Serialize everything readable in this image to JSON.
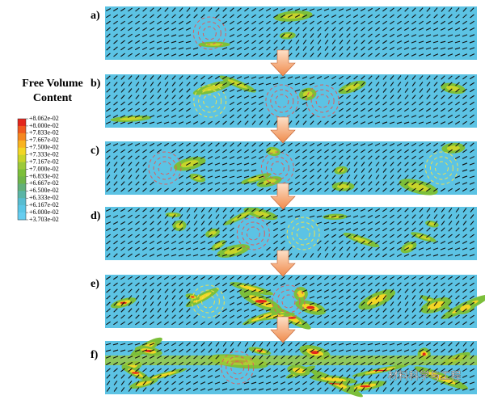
{
  "legend": {
    "title_lines": [
      "Free Volume",
      "Content"
    ],
    "labels": [
      "+8.062e-02",
      "+8.000e-02",
      "+7.833e-02",
      "+7.667e-02",
      "+7.500e-02",
      "+7.333e-02",
      "+7.167e-02",
      "+7.000e-02",
      "+6.833e-02",
      "+6.667e-02",
      "+6.500e-02",
      "+6.333e-02",
      "+6.167e-02",
      "+6.000e-02",
      "+3.703e-02"
    ],
    "colors": [
      "#e3261c",
      "#f0591e",
      "#f5871f",
      "#f8b321",
      "#f2d625",
      "#c8d42a",
      "#9cc93a",
      "#7cbf3a",
      "#6fb54a",
      "#62b07a",
      "#5bb5a6",
      "#58bcd0",
      "#5bc6e6",
      "#66cdf0"
    ]
  },
  "panels": [
    {
      "label": "a)"
    },
    {
      "label": "b)"
    },
    {
      "label": "c)"
    },
    {
      "label": "d)"
    },
    {
      "label": "e)"
    },
    {
      "label": "f)"
    }
  ],
  "watermark": "材料科学与工程"
}
